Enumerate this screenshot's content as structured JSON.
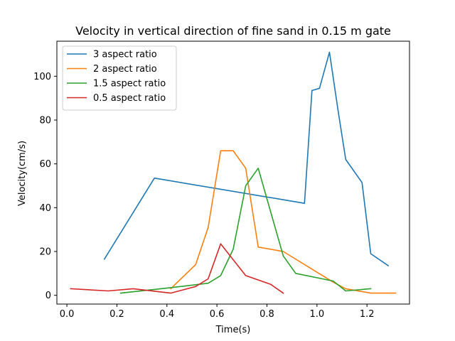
{
  "chart_data": {
    "type": "line",
    "title": "Velocity in vertical direction of fine sand in 0.15 m gate",
    "xlabel": "Time(s)",
    "ylabel": "Velocity(cm/s)",
    "xlim": [
      -0.04,
      1.37
    ],
    "ylim": [
      -4,
      116
    ],
    "xticks": [
      0.0,
      0.2,
      0.4,
      0.6,
      0.8,
      1.0,
      1.2
    ],
    "xtick_labels": [
      "0.0",
      "0.2",
      "0.4",
      "0.6",
      "0.8",
      "1.0",
      "1.2"
    ],
    "yticks": [
      0,
      20,
      40,
      60,
      80,
      100
    ],
    "ytick_labels": [
      "0",
      "20",
      "40",
      "60",
      "80",
      "100"
    ],
    "grid": false,
    "legend_position": "top-left",
    "series": [
      {
        "name": "3 aspect ratio",
        "color": "#1f77b4",
        "x": [
          0.15,
          0.35,
          0.95,
          0.98,
          1.01,
          1.05,
          1.085,
          1.115,
          1.18,
          1.215,
          1.285
        ],
        "y": [
          16.5,
          53.5,
          42,
          93.5,
          94.5,
          111,
          84,
          62,
          51.5,
          19,
          13.5
        ]
      },
      {
        "name": "2 aspect ratio",
        "color": "#ff7f0e",
        "x": [
          0.415,
          0.515,
          0.565,
          0.615,
          0.665,
          0.715,
          0.765,
          0.865,
          1.065,
          1.115,
          1.215,
          1.315
        ],
        "y": [
          3,
          14,
          31,
          66,
          66,
          58,
          22,
          20,
          6,
          3,
          1,
          1
        ]
      },
      {
        "name": "1.5 aspect ratio",
        "color": "#2ca02c",
        "x": [
          0.215,
          0.415,
          0.565,
          0.615,
          0.665,
          0.715,
          0.765,
          0.865,
          0.915,
          1.065,
          1.115,
          1.215
        ],
        "y": [
          1,
          3.5,
          5.5,
          9,
          21,
          50,
          58,
          18,
          10,
          6.5,
          2,
          3
        ]
      },
      {
        "name": "0.5 aspect ratio",
        "color": "#d62728",
        "x": [
          0.015,
          0.165,
          0.265,
          0.415,
          0.515,
          0.565,
          0.615,
          0.715,
          0.815,
          0.865
        ],
        "y": [
          3,
          2,
          3,
          1,
          4,
          7.5,
          23.5,
          9,
          5,
          1
        ]
      }
    ]
  }
}
